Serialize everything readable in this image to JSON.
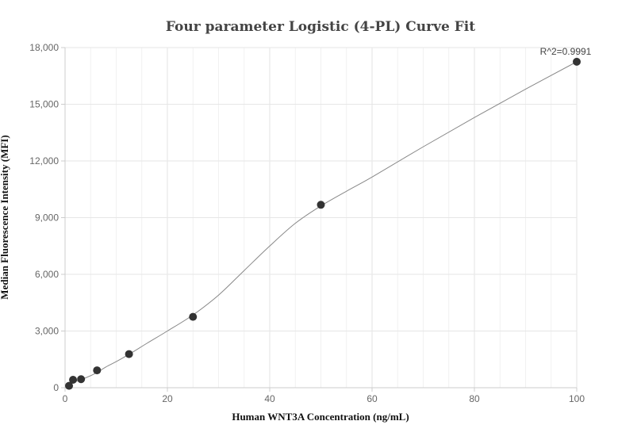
{
  "chart_data": {
    "type": "scatter",
    "title": "Four parameter Logistic (4-PL) Curve Fit",
    "xlabel": "Human WNT3A Concentration (ng/mL)",
    "ylabel": "Median Fluorescence Intensity (MFI)",
    "xlim": [
      0,
      100
    ],
    "ylim": [
      0,
      18000
    ],
    "x_ticks": [
      0,
      20,
      40,
      60,
      80,
      100
    ],
    "y_ticks": [
      0,
      3000,
      6000,
      9000,
      12000,
      15000,
      18000
    ],
    "x_tick_labels": [
      "0",
      "20",
      "40",
      "60",
      "80",
      "100"
    ],
    "y_tick_labels": [
      "0",
      "3,000",
      "6,000",
      "9,000",
      "12,000",
      "15,000",
      "18,000"
    ],
    "grid": true,
    "points": {
      "x": [
        0.78,
        1.56,
        3.13,
        6.25,
        12.5,
        25,
        50,
        100
      ],
      "y": [
        100,
        420,
        450,
        920,
        1780,
        3750,
        9680,
        17250
      ]
    },
    "fit_curve": {
      "x": [
        0,
        1,
        2,
        4,
        6,
        8,
        10,
        13,
        16,
        20,
        25,
        30,
        35,
        40,
        45,
        50,
        55,
        60,
        70,
        80,
        90,
        100
      ],
      "y": [
        150,
        240,
        330,
        520,
        770,
        1100,
        1380,
        1850,
        2350,
        3000,
        3850,
        4900,
        6200,
        7500,
        8700,
        9620,
        10400,
        11150,
        12750,
        14300,
        15800,
        17250
      ]
    },
    "annotation": "R^2=0.9991",
    "colors": {
      "point": "#333333",
      "curve": "#888888",
      "grid": "#e6e6e6",
      "axis": "#cccccc"
    }
  }
}
